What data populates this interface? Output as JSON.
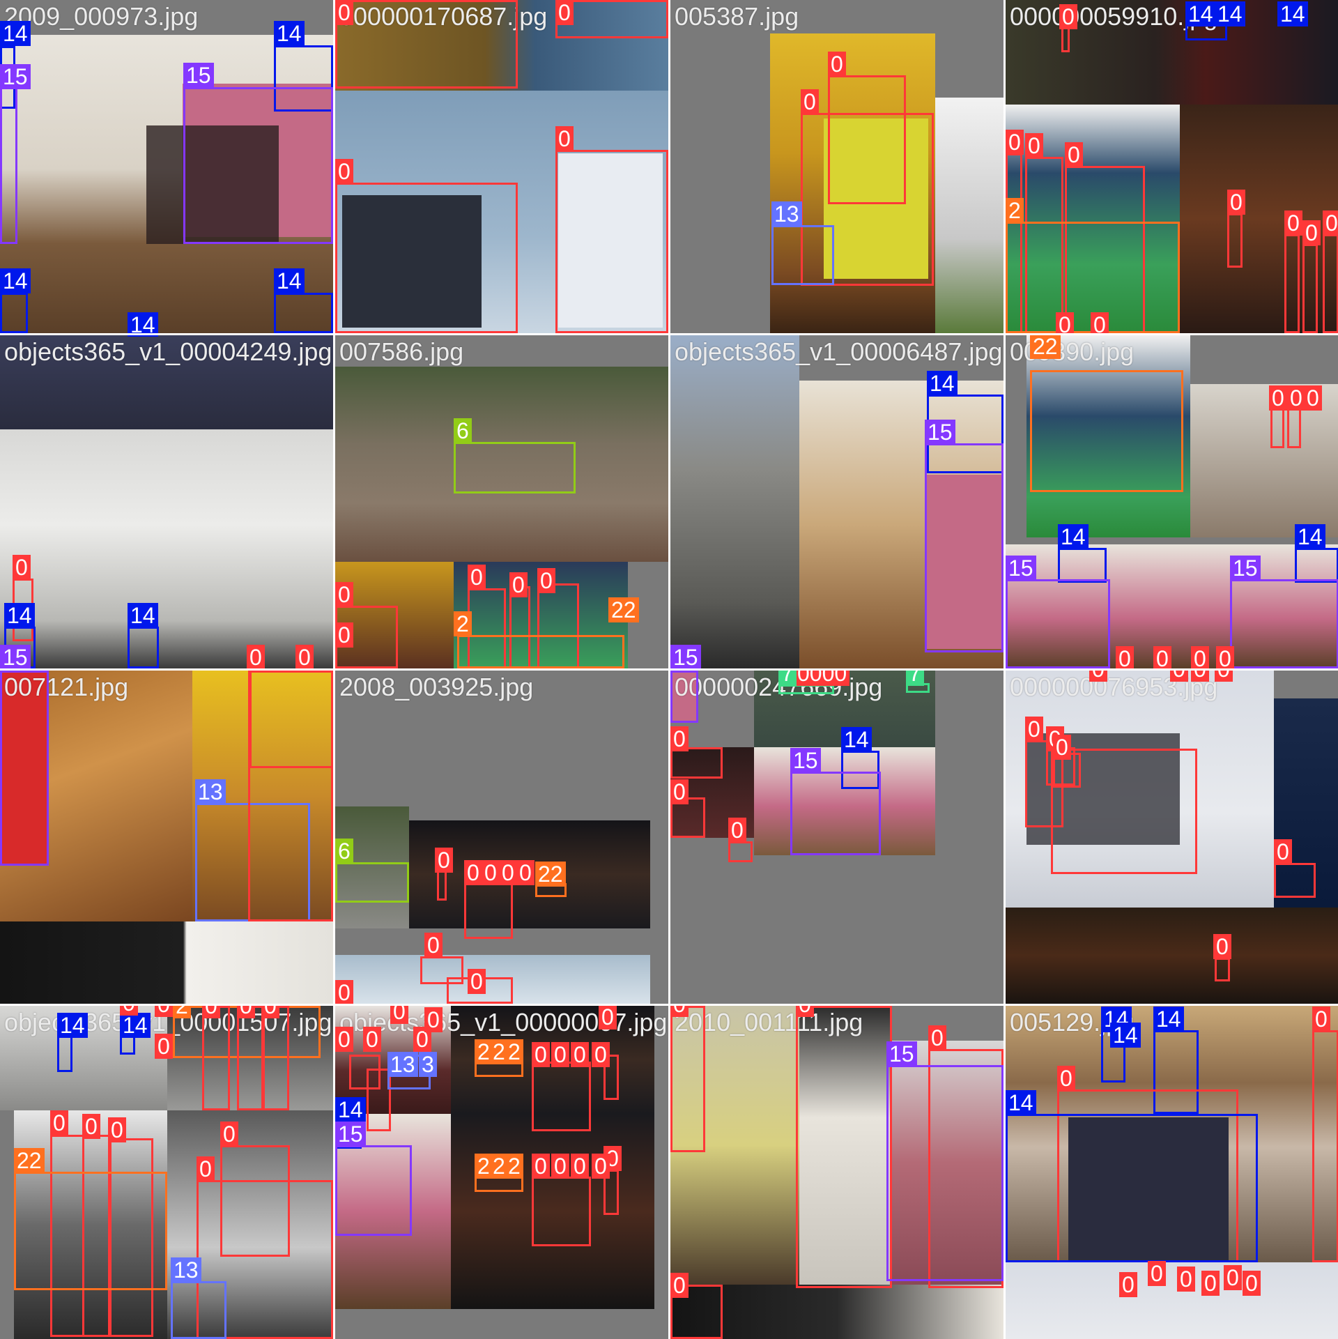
{
  "colors": {
    "0": "#ff3838",
    "2": "#ff701f",
    "6": "#92cc17",
    "7": "#3ddb86",
    "13": "#6473ff",
    "14": "#0018ec",
    "15": "#8438ff"
  },
  "tiles": [
    {
      "name": "2009_000973.jpg",
      "labels": [
        "14",
        "14",
        "15",
        "15",
        "14",
        "14",
        "14"
      ]
    },
    {
      "name": "000000170687.jpg",
      "labels": [
        "0",
        "0",
        "0",
        "0"
      ]
    },
    {
      "name": "005387.jpg",
      "labels": [
        "0",
        "0",
        "13"
      ]
    },
    {
      "name": "000000059910.jpg",
      "labels": [
        "0",
        "14",
        "14",
        "14",
        "0",
        "0",
        "0",
        "2",
        "0",
        "0",
        "0",
        "0",
        "0",
        "0"
      ]
    },
    {
      "name": "objects365_v1_00004249.jpg",
      "labels": [
        "14",
        "0",
        "14",
        "14",
        "15",
        "0",
        "0"
      ]
    },
    {
      "name": "007586.jpg",
      "labels": [
        "6",
        "0",
        "0",
        "0",
        "0",
        "0",
        "2",
        "22"
      ]
    },
    {
      "name": "objects365_v1_00006487.jpg",
      "labels": [
        "14",
        "15",
        "15"
      ]
    },
    {
      "name": "009390.jpg",
      "labels": [
        "22",
        "0",
        "0",
        "0",
        "14",
        "14",
        "15",
        "15",
        "0",
        "0",
        "0",
        "0"
      ]
    },
    {
      "name": "007121.jpg",
      "labels": [
        "13",
        "0",
        "0"
      ]
    },
    {
      "name": "2008_003925.jpg",
      "labels": [
        "6",
        "0",
        "0",
        "0",
        "0",
        "0",
        "22",
        "0",
        "0",
        "0"
      ]
    },
    {
      "name": "000000247669.jpg",
      "labels": [
        "0000",
        "7",
        "7",
        "0",
        "0",
        "14",
        "15",
        "0"
      ]
    },
    {
      "name": "000000076953.jpg",
      "labels": [
        "0",
        "0",
        "0",
        "0",
        "0",
        "0",
        "0",
        "0",
        "0"
      ]
    },
    {
      "name": "objects365_v1_00001507.jpg",
      "labels": [
        "14",
        "14",
        "0",
        "0",
        "2",
        "0",
        "0",
        "0",
        "0",
        "0",
        "0",
        "0",
        "22",
        "0",
        "0",
        "13"
      ]
    },
    {
      "name": "objects365_v1_00000007.jpg",
      "labels": [
        "0",
        "0",
        "0",
        "0",
        "0",
        "13",
        "3",
        "14",
        "15",
        "2",
        "2",
        "2",
        "0",
        "0",
        "0",
        "0",
        "0",
        "2",
        "2",
        "2",
        "0",
        "0",
        "0",
        "0",
        "0"
      ]
    },
    {
      "name": "2010_001111.jpg",
      "labels": [
        "0",
        "0",
        "0",
        "15",
        "0"
      ]
    },
    {
      "name": "005129.jpg",
      "labels": [
        "14",
        "14",
        "14",
        "0",
        "14",
        "0",
        "0",
        "0",
        "0",
        "0",
        "0",
        "0"
      ]
    }
  ]
}
